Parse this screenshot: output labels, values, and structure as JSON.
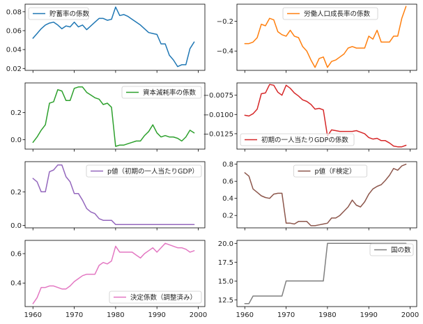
{
  "chart_data": [
    {
      "type": "line",
      "series": [
        {
          "name": "貯蓄率の係数",
          "color": "#1f77b4"
        }
      ],
      "x": [
        1960,
        1961,
        1962,
        1963,
        1964,
        1965,
        1966,
        1967,
        1968,
        1969,
        1970,
        1971,
        1972,
        1973,
        1974,
        1975,
        1976,
        1977,
        1978,
        1979,
        1980,
        1981,
        1982,
        1983,
        1984,
        1985,
        1986,
        1987,
        1988,
        1989,
        1990,
        1991,
        1992,
        1993,
        1994,
        1995,
        1996,
        1997,
        1998,
        1999
      ],
      "values": [
        0.052,
        0.057,
        0.062,
        0.066,
        0.068,
        0.069,
        0.066,
        0.062,
        0.065,
        0.064,
        0.069,
        0.064,
        0.066,
        0.061,
        0.065,
        0.069,
        0.073,
        0.073,
        0.071,
        0.072,
        0.085,
        0.076,
        0.077,
        0.075,
        0.072,
        0.069,
        0.066,
        0.062,
        0.058,
        0.057,
        0.056,
        0.046,
        0.046,
        0.034,
        0.029,
        0.022,
        0.024,
        0.024,
        0.041,
        0.048
      ],
      "ylim": [
        0.018,
        0.088
      ],
      "yticks": [
        "0.02",
        "0.04",
        "0.06",
        "0.08"
      ],
      "ytick_values": [
        0.02,
        0.04,
        0.06,
        0.08
      ],
      "legend": "upper-left"
    },
    {
      "type": "line",
      "series": [
        {
          "name": "労働人口成長率の係数",
          "color": "#ff7f0e"
        }
      ],
      "x": [
        1960,
        1961,
        1962,
        1963,
        1964,
        1965,
        1966,
        1967,
        1968,
        1969,
        1970,
        1971,
        1972,
        1973,
        1974,
        1975,
        1976,
        1977,
        1978,
        1979,
        1980,
        1981,
        1982,
        1983,
        1984,
        1985,
        1986,
        1987,
        1988,
        1989,
        1990,
        1991,
        1992,
        1993,
        1994,
        1995,
        1996,
        1997,
        1998,
        1999
      ],
      "values": [
        -0.35,
        -0.35,
        -0.34,
        -0.31,
        -0.22,
        -0.23,
        -0.18,
        -0.19,
        -0.27,
        -0.29,
        -0.3,
        -0.26,
        -0.3,
        -0.31,
        -0.37,
        -0.4,
        -0.46,
        -0.51,
        -0.45,
        -0.44,
        -0.51,
        -0.47,
        -0.46,
        -0.44,
        -0.42,
        -0.38,
        -0.37,
        -0.38,
        -0.38,
        -0.38,
        -0.3,
        -0.32,
        -0.26,
        -0.34,
        -0.34,
        -0.34,
        -0.3,
        -0.3,
        -0.18,
        -0.1
      ],
      "ylim": [
        -0.53,
        -0.085
      ],
      "yticks": [
        "−0.2",
        "−0.4"
      ],
      "ytick_values": [
        -0.2,
        -0.4
      ],
      "legend": "upper-center"
    },
    {
      "type": "line",
      "series": [
        {
          "name": "資本減耗率の係数",
          "color": "#2ca02c"
        }
      ],
      "x": [
        1960,
        1961,
        1962,
        1963,
        1964,
        1965,
        1966,
        1967,
        1968,
        1969,
        1970,
        1971,
        1972,
        1973,
        1974,
        1975,
        1976,
        1977,
        1978,
        1979,
        1980,
        1981,
        1982,
        1983,
        1984,
        1985,
        1986,
        1987,
        1988,
        1989,
        1990,
        1991,
        1992,
        1993,
        1994,
        1995,
        1996,
        1997,
        1998,
        1999
      ],
      "values": [
        -0.02,
        0.02,
        0.07,
        0.11,
        0.27,
        0.28,
        0.37,
        0.36,
        0.29,
        0.29,
        0.38,
        0.39,
        0.39,
        0.35,
        0.33,
        0.31,
        0.3,
        0.26,
        0.27,
        0.24,
        -0.05,
        -0.04,
        -0.04,
        -0.03,
        -0.02,
        -0.01,
        -0.01,
        0.03,
        0.06,
        0.11,
        0.05,
        0.02,
        0.03,
        0.02,
        0.02,
        0.01,
        -0.01,
        0.02,
        0.07,
        0.05
      ],
      "ylim": [
        -0.07,
        0.42
      ],
      "yticks": [
        "0.2",
        "0.0"
      ],
      "ytick_values": [
        0.2,
        0.0
      ],
      "legend": "upper-right"
    },
    {
      "type": "line",
      "series": [
        {
          "name": "初期の一人当たりGDPの係数",
          "color": "#d62728"
        }
      ],
      "x": [
        1960,
        1961,
        1962,
        1963,
        1964,
        1965,
        1966,
        1967,
        1968,
        1969,
        1970,
        1971,
        1972,
        1973,
        1974,
        1975,
        1976,
        1977,
        1978,
        1979,
        1980,
        1981,
        1982,
        1983,
        1984,
        1985,
        1986,
        1987,
        1988,
        1989,
        1990,
        1991,
        1992,
        1993,
        1994,
        1995,
        1996,
        1997,
        1998,
        1999
      ],
      "values": [
        -0.0101,
        -0.0102,
        -0.0099,
        -0.0093,
        -0.0073,
        -0.0072,
        -0.0061,
        -0.0062,
        -0.0071,
        -0.0075,
        -0.0062,
        -0.0066,
        -0.0072,
        -0.0076,
        -0.0081,
        -0.0083,
        -0.0087,
        -0.0093,
        -0.0092,
        -0.0094,
        -0.0128,
        -0.012,
        -0.0121,
        -0.0122,
        -0.0122,
        -0.0122,
        -0.0122,
        -0.0121,
        -0.0123,
        -0.0125,
        -0.013,
        -0.0132,
        -0.0131,
        -0.0134,
        -0.0134,
        -0.0137,
        -0.0141,
        -0.0142,
        -0.0142,
        -0.014
      ],
      "ylim": [
        -0.0145,
        -0.0059
      ],
      "yticks": [
        "−0.0075",
        "−0.0100",
        "−0.0125"
      ],
      "ytick_values": [
        -0.0075,
        -0.01,
        -0.0125
      ],
      "legend": "lower-left"
    },
    {
      "type": "line",
      "series": [
        {
          "name": "p値（初期の一人当たりGDP）",
          "color": "#9467bd"
        }
      ],
      "x": [
        1960,
        1961,
        1962,
        1963,
        1964,
        1965,
        1966,
        1967,
        1968,
        1969,
        1970,
        1971,
        1972,
        1973,
        1974,
        1975,
        1976,
        1977,
        1978,
        1979,
        1980,
        1981,
        1982,
        1983,
        1984,
        1985,
        1986,
        1987,
        1988,
        1989,
        1990,
        1991,
        1992,
        1993,
        1994,
        1995,
        1996,
        1997,
        1998,
        1999
      ],
      "values": [
        0.28,
        0.26,
        0.2,
        0.2,
        0.32,
        0.33,
        0.36,
        0.36,
        0.29,
        0.26,
        0.19,
        0.19,
        0.15,
        0.1,
        0.08,
        0.07,
        0.04,
        0.03,
        0.03,
        0.03,
        0.005,
        0.005,
        0.005,
        0.005,
        0.005,
        0.005,
        0.005,
        0.005,
        0.005,
        0.005,
        0.005,
        0.005,
        0.005,
        0.005,
        0.005,
        0.005,
        0.005,
        0.005,
        0.005,
        0.005
      ],
      "ylim": [
        -0.015,
        0.38
      ],
      "yticks": [
        "0.2",
        "0.0"
      ],
      "ytick_values": [
        0.2,
        0.0
      ],
      "legend": "upper-right"
    },
    {
      "type": "line",
      "series": [
        {
          "name": "p値（F検定）",
          "color": "#8c564b"
        }
      ],
      "x": [
        1960,
        1961,
        1962,
        1963,
        1964,
        1965,
        1966,
        1967,
        1968,
        1969,
        1970,
        1971,
        1972,
        1973,
        1974,
        1975,
        1976,
        1977,
        1978,
        1979,
        1980,
        1981,
        1982,
        1983,
        1984,
        1985,
        1986,
        1987,
        1988,
        1989,
        1990,
        1991,
        1992,
        1993,
        1994,
        1995,
        1996,
        1997,
        1998,
        1999
      ],
      "values": [
        0.7,
        0.66,
        0.51,
        0.47,
        0.43,
        0.41,
        0.4,
        0.45,
        0.46,
        0.46,
        0.11,
        0.11,
        0.1,
        0.13,
        0.13,
        0.13,
        0.08,
        0.08,
        0.09,
        0.1,
        0.11,
        0.17,
        0.17,
        0.2,
        0.25,
        0.3,
        0.38,
        0.32,
        0.3,
        0.36,
        0.45,
        0.51,
        0.54,
        0.56,
        0.61,
        0.67,
        0.75,
        0.73,
        0.78,
        0.8
      ],
      "ylim": [
        0.055,
        0.83
      ],
      "yticks": [
        "0.8",
        "0.6",
        "0.4",
        "0.2"
      ],
      "ytick_values": [
        0.8,
        0.6,
        0.4,
        0.2
      ],
      "legend": "upper-center"
    },
    {
      "type": "line",
      "series": [
        {
          "name": "決定係数（調整済み）",
          "color": "#e377c2"
        }
      ],
      "x": [
        1960,
        1961,
        1962,
        1963,
        1964,
        1965,
        1966,
        1967,
        1968,
        1969,
        1970,
        1971,
        1972,
        1973,
        1974,
        1975,
        1976,
        1977,
        1978,
        1979,
        1980,
        1981,
        1982,
        1983,
        1984,
        1985,
        1986,
        1987,
        1988,
        1989,
        1990,
        1991,
        1992,
        1993,
        1994,
        1995,
        1996,
        1997,
        1998,
        1999
      ],
      "values": [
        0.26,
        0.3,
        0.37,
        0.37,
        0.38,
        0.38,
        0.37,
        0.36,
        0.36,
        0.38,
        0.41,
        0.43,
        0.45,
        0.46,
        0.46,
        0.46,
        0.52,
        0.54,
        0.53,
        0.55,
        0.65,
        0.61,
        0.61,
        0.61,
        0.61,
        0.59,
        0.57,
        0.6,
        0.62,
        0.64,
        0.61,
        0.64,
        0.67,
        0.66,
        0.65,
        0.64,
        0.64,
        0.63,
        0.61,
        0.62
      ],
      "ylim": [
        0.24,
        0.69
      ],
      "yticks": [
        "0.6",
        "0.4"
      ],
      "ytick_values": [
        0.6,
        0.4
      ],
      "legend": "lower-right"
    },
    {
      "type": "line",
      "series": [
        {
          "name": "国の数",
          "color": "#7f7f7f"
        }
      ],
      "x": [
        1960,
        1961,
        1962,
        1963,
        1964,
        1965,
        1966,
        1967,
        1968,
        1969,
        1970,
        1971,
        1972,
        1973,
        1974,
        1975,
        1976,
        1977,
        1978,
        1979,
        1980,
        1981,
        1982,
        1983,
        1984,
        1985,
        1986,
        1987,
        1988,
        1989,
        1990,
        1991,
        1992,
        1993,
        1994,
        1995,
        1996,
        1997,
        1998,
        1999
      ],
      "values": [
        12,
        12,
        13,
        13,
        13,
        13,
        13,
        13,
        13,
        13,
        15,
        15,
        15,
        15,
        15,
        15,
        15,
        15,
        15,
        15,
        20,
        20,
        20,
        20,
        20,
        20,
        20,
        20,
        20,
        20,
        20,
        20,
        20,
        20,
        20,
        20,
        20,
        20,
        20,
        20
      ],
      "ylim": [
        11.6,
        20.4
      ],
      "yticks": [
        "20.0",
        "17.5",
        "15.0",
        "12.5"
      ],
      "ytick_values": [
        20.0,
        17.5,
        15.0,
        12.5
      ],
      "legend": "upper-right"
    }
  ],
  "x_axis": {
    "xlim": [
      1958.1,
      2001.6
    ],
    "tick_values": [
      1960,
      1970,
      1980,
      1990,
      2000
    ],
    "tick_labels": [
      "1960",
      "1970",
      "1980",
      "1990",
      "2000"
    ]
  }
}
